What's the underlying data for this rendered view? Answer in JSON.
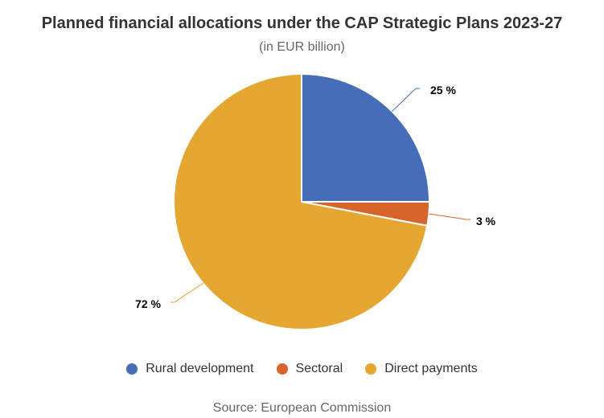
{
  "title": "Planned financial allocations under the CAP Strategic Plans 2023-27",
  "subtitle": "(in EUR billion)",
  "source": "Source: European Commission",
  "colors": {
    "rural": "#476db6",
    "sectoral": "#d7642b",
    "direct": "#e5a632"
  },
  "chart_data": {
    "type": "pie",
    "title": "Planned financial allocations under the CAP Strategic Plans 2023-27",
    "subtitle": "(in EUR billion)",
    "legend_position": "bottom",
    "slices": [
      {
        "name": "Rural development",
        "percent": 25,
        "label": "25 %",
        "color": "#476db6",
        "icon": "circle"
      },
      {
        "name": "Sectoral",
        "percent": 3,
        "label": "3 %",
        "color": "#d7642b",
        "icon": "circle"
      },
      {
        "name": "Direct payments",
        "percent": 72,
        "label": "72 %",
        "color": "#e5a632",
        "icon": "circle"
      }
    ]
  }
}
